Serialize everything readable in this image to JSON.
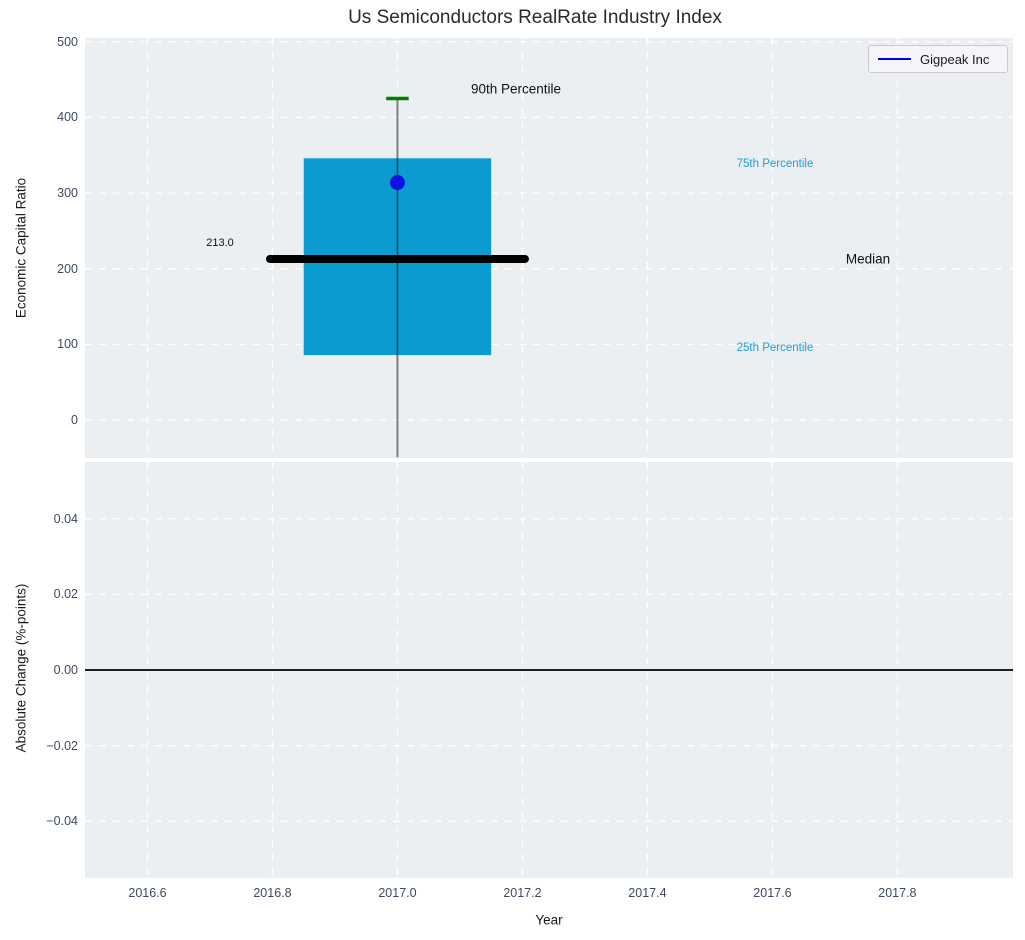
{
  "title": "Us Semiconductors RealRate Industry Index",
  "legend": {
    "label": "Gigpeak Inc",
    "line_color": "#0000e6"
  },
  "axes": {
    "top_ylabel": "Economic Capital Ratio",
    "bottom_ylabel": "Absolute Change (%-points)",
    "xlabel": "Year"
  },
  "annotations": {
    "p90_label": "90th Percentile",
    "p75_label": "75th Percentile",
    "median_label": "Median",
    "p25_label": "25th Percentile",
    "median_value_label": "213.0"
  },
  "colors": {
    "plot_bg": "#eceff1",
    "grid": "#ffffff",
    "box_fill": "#0a9cd1",
    "whisker_gray": "#7d7d7d",
    "whisker_inner": "#1f4a58",
    "cap_green": "#008000",
    "median_black": "#000000",
    "dot_blue": "#1010e0",
    "zero_line": "#000000",
    "percentile_text": "#1aa0da",
    "tick_text": "#3c4a5f"
  },
  "chart_data": [
    {
      "type": "box",
      "title": "Us Semiconductors RealRate Industry Index",
      "ylabel": "Economic Capital Ratio",
      "series_name": "Gigpeak Inc",
      "x": 2017.0,
      "p90": 425,
      "p75": 346,
      "median": 213.0,
      "p25": 86,
      "whisker_low": -49,
      "company_value": 314,
      "yticks": [
        0,
        100,
        200,
        300,
        400,
        500
      ],
      "ylim": [
        -50,
        505
      ],
      "grid": true,
      "legend_position": "top-right"
    },
    {
      "type": "line",
      "ylabel": "Absolute Change (%-points)",
      "xlabel": "Year",
      "series_name": "Gigpeak Inc",
      "values": [],
      "zero_line": 0.0,
      "yticks": [
        -0.04,
        -0.02,
        0.0,
        0.02,
        0.04
      ],
      "xticks": [
        2016.6,
        2016.8,
        2017.0,
        2017.2,
        2017.4,
        2017.6,
        2017.8
      ],
      "xlim": [
        2016.5,
        2017.985
      ],
      "ylim": [
        -0.055,
        0.055
      ],
      "grid": true
    }
  ]
}
